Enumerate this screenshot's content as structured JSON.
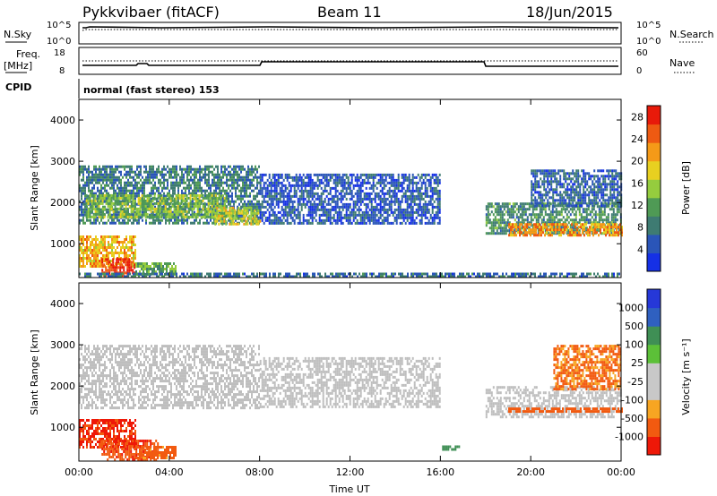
{
  "header": {
    "station": "Pykkvibaer (fitACF)",
    "beam": "Beam 11",
    "date": "18/Jun/2015"
  },
  "summary": {
    "nsky_label": "N.Sky",
    "nsearch_label": "N.Search",
    "nsky_ticks": [
      "10^5",
      "10^0"
    ],
    "freq_label": "Freq.",
    "freq_unit": "[MHz]",
    "freq_ticks": [
      "18",
      "8"
    ],
    "nave_label": "Nave",
    "nave_ticks": [
      "60",
      "0"
    ],
    "cpid_label": "CPID",
    "cpid_text": "normal (fast stereo) 153"
  },
  "colors": {
    "power": [
      "#1530e6",
      "#2a55b8",
      "#3e7b72",
      "#4f9a55",
      "#95cc3e",
      "#e8d020",
      "#f59a18",
      "#ee5a12",
      "#e81a0a"
    ],
    "velocity": [
      "#ee1808",
      "#f25a10",
      "#f7a522",
      "#c8c8c8",
      "#c8c8c8",
      "#5cc038",
      "#3f8f55",
      "#2f60c0",
      "#2638d8"
    ],
    "ground_scatter": "#bebebe"
  },
  "chart_data": [
    {
      "type": "heatmap",
      "name": "power",
      "ylabel": "Slant Range [km]",
      "xlabel": "",
      "x_ticks": [
        "00:00",
        "04:00",
        "08:00",
        "12:00",
        "16:00",
        "20:00",
        "00:00"
      ],
      "xlim_hours": [
        0,
        24
      ],
      "ylim": [
        180,
        4500
      ],
      "y_ticks": [
        1000,
        2000,
        3000,
        4000
      ],
      "colorbar": {
        "label": "Power [dB]",
        "ticks": [
          "4",
          "8",
          "12",
          "16",
          "20",
          "24",
          "28"
        ],
        "range": [
          0,
          30
        ]
      },
      "regions": [
        {
          "t": [
            0.0,
            8.0
          ],
          "r": [
            1500,
            2900
          ],
          "value": 8
        },
        {
          "t": [
            0.3,
            6.5
          ],
          "r": [
            1650,
            2200
          ],
          "value": 14
        },
        {
          "t": [
            6.0,
            8.0
          ],
          "r": [
            1500,
            1900
          ],
          "value": 17
        },
        {
          "t": [
            0.0,
            2.5
          ],
          "r": [
            450,
            1200
          ],
          "value": 20
        },
        {
          "t": [
            1.0,
            2.5
          ],
          "r": [
            200,
            650
          ],
          "value": 28
        },
        {
          "t": [
            2.5,
            4.3
          ],
          "r": [
            250,
            550
          ],
          "value": 12
        },
        {
          "t": [
            18.0,
            24.0
          ],
          "r": [
            1250,
            2000
          ],
          "value": 10
        },
        {
          "t": [
            19.0,
            24.0
          ],
          "r": [
            1200,
            1500
          ],
          "value": 22
        },
        {
          "t": [
            20.0,
            24.0
          ],
          "r": [
            1950,
            2800
          ],
          "value": 6
        },
        {
          "t": [
            8.0,
            16.0
          ],
          "r": [
            1500,
            2700
          ],
          "value": 5
        },
        {
          "t": [
            0.0,
            24.0
          ],
          "r": [
            180,
            300
          ],
          "value": 7
        }
      ]
    },
    {
      "type": "heatmap",
      "name": "velocity",
      "ylabel": "Slant Range [km]",
      "xlabel": "Time UT",
      "x_ticks": [
        "00:00",
        "04:00",
        "08:00",
        "12:00",
        "16:00",
        "20:00",
        "00:00"
      ],
      "xlim_hours": [
        0,
        24
      ],
      "ylim": [
        180,
        4500
      ],
      "y_ticks": [
        1000,
        2000,
        3000,
        4000
      ],
      "colorbar": {
        "label": "Velocity [m s⁻¹]",
        "ticks": [
          "1000",
          "500",
          "100",
          "25",
          "-25",
          "-100",
          "-500",
          "-1000"
        ]
      },
      "regions": [
        {
          "t": [
            0.0,
            8.0
          ],
          "r": [
            1500,
            3000
          ],
          "value": 0,
          "gs": true
        },
        {
          "t": [
            8.0,
            16.0
          ],
          "r": [
            1500,
            2700
          ],
          "value": 0,
          "gs": true
        },
        {
          "t": [
            18.0,
            24.0
          ],
          "r": [
            1250,
            2000
          ],
          "value": 0,
          "gs": true
        },
        {
          "t": [
            0.0,
            2.5
          ],
          "r": [
            500,
            1200
          ],
          "value": -550
        },
        {
          "t": [
            1.0,
            3.5
          ],
          "r": [
            200,
            700
          ],
          "value": -450
        },
        {
          "t": [
            2.5,
            4.3
          ],
          "r": [
            250,
            550
          ],
          "value": -130
        },
        {
          "t": [
            16.0,
            16.8
          ],
          "r": [
            480,
            560
          ],
          "value": 150
        },
        {
          "t": [
            19.0,
            24.0
          ],
          "r": [
            1380,
            1480
          ],
          "value": -200
        },
        {
          "t": [
            21.0,
            24.0
          ],
          "r": [
            1950,
            3000
          ],
          "value": -110
        }
      ]
    }
  ]
}
